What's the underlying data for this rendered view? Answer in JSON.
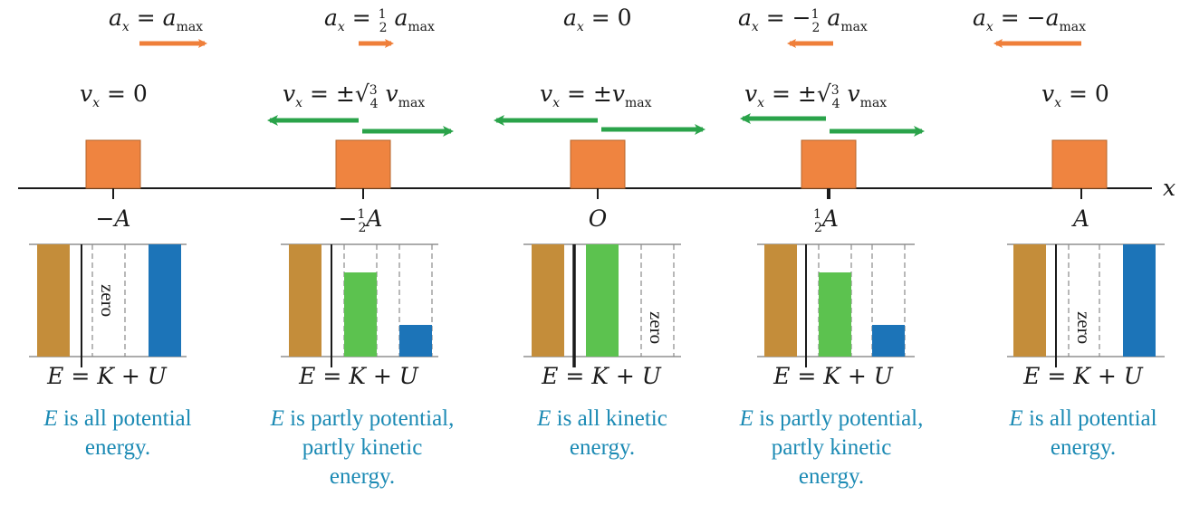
{
  "axis": {
    "label": "x"
  },
  "colors": {
    "block": "#ef8440",
    "accel_arrow": "#ef7f3a",
    "vel_arrow": "#2aa34a",
    "total_energy_bar": "#c48d3a",
    "kinetic_bar": "#5cc24f",
    "potential_bar": "#1c74b8",
    "caption": "#1b8ab4"
  },
  "positions": [
    {
      "label": "−A",
      "accel_text": "a = a",
      "velocity_text": "v = 0",
      "energy_eq": "E = K + U",
      "caption_lines": [
        "E is all potential",
        "energy."
      ],
      "zero_label": "zero",
      "kinetic_fraction": 0,
      "potential_fraction": 1
    },
    {
      "label": "−½A",
      "accel_text": "a = ½a",
      "velocity_text": "v = ±√¾ v",
      "energy_eq": "E = K + U",
      "caption_lines": [
        "E is partly potential,",
        "partly kinetic",
        "energy."
      ],
      "zero_label": "",
      "kinetic_fraction": 0.75,
      "potential_fraction": 0.25
    },
    {
      "label": "O",
      "accel_text": "a = 0",
      "velocity_text": "v = ±v",
      "energy_eq": "E = K + U",
      "caption_lines": [
        "E is all kinetic",
        "energy."
      ],
      "zero_label": "zero",
      "kinetic_fraction": 1,
      "potential_fraction": 0
    },
    {
      "label": "½A",
      "accel_text": "a = −½a",
      "velocity_text": "v = ±√¾ v",
      "energy_eq": "E = K + U",
      "caption_lines": [
        "E is partly potential,",
        "partly kinetic",
        "energy."
      ],
      "zero_label": "",
      "kinetic_fraction": 0.75,
      "potential_fraction": 0.25
    },
    {
      "label": "A",
      "accel_text": "a = −a",
      "velocity_text": "v = 0",
      "energy_eq": "E = K + U",
      "caption_lines": [
        "E is all potential",
        "energy."
      ],
      "zero_label": "zero",
      "kinetic_fraction": 0,
      "potential_fraction": 1
    }
  ],
  "subscripts": {
    "x": "x",
    "max": "max"
  }
}
